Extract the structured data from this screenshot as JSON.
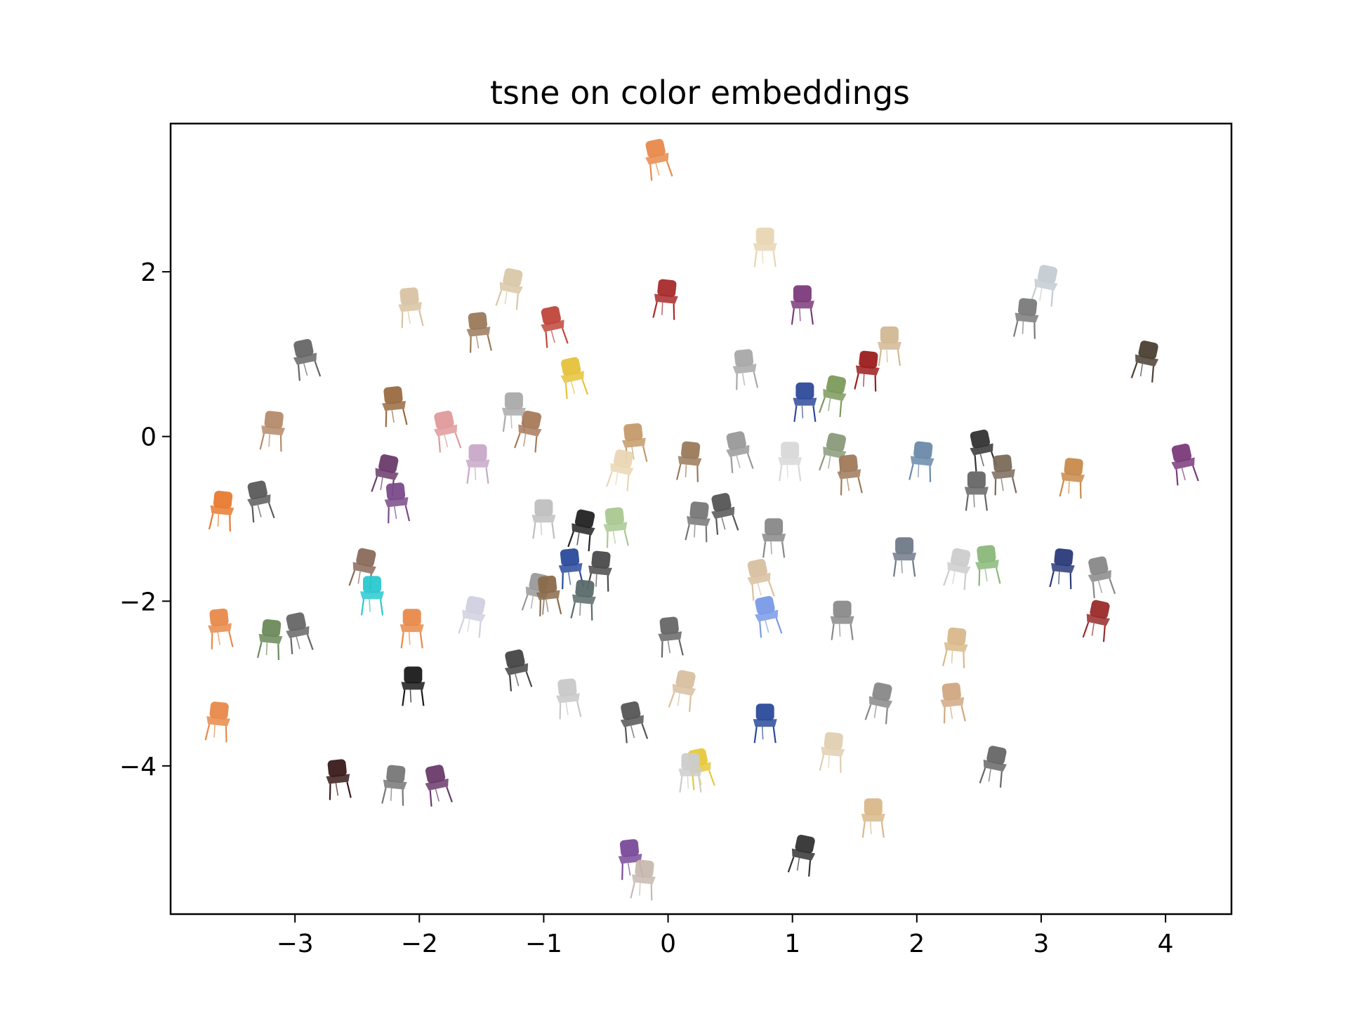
{
  "chart_data": {
    "type": "scatter",
    "title": "tsne on color embeddings",
    "xlabel": "",
    "ylabel": "",
    "xlim": [
      -4.0,
      4.53
    ],
    "ylim": [
      -5.8,
      3.8
    ],
    "x_ticks": [
      -3,
      -2,
      -1,
      0,
      1,
      2,
      3,
      4
    ],
    "y_ticks": [
      2,
      0,
      -2,
      -4
    ],
    "x_tick_labels": [
      "−3",
      "−2",
      "−1",
      "0",
      "1",
      "2",
      "3",
      "4"
    ],
    "y_tick_labels": [
      "2",
      "0",
      "−2",
      "−4"
    ],
    "grid": false,
    "legend": "none",
    "marker": "chair-thumbnail",
    "points": [
      {
        "x": -0.08,
        "y": 3.35,
        "color": "#e8894a"
      },
      {
        "x": 0.78,
        "y": 2.28,
        "color": "#e8d6b4"
      },
      {
        "x": -1.27,
        "y": 1.78,
        "color": "#d9c7a8"
      },
      {
        "x": -2.07,
        "y": 1.55,
        "color": "#d8c3a2"
      },
      {
        "x": -0.02,
        "y": 1.65,
        "color": "#a82a2a"
      },
      {
        "x": -0.92,
        "y": 1.32,
        "color": "#c0453a"
      },
      {
        "x": 1.08,
        "y": 1.58,
        "color": "#7b3a7b"
      },
      {
        "x": 3.03,
        "y": 1.82,
        "color": "#c4ccd2"
      },
      {
        "x": -1.52,
        "y": 1.25,
        "color": "#9a7a5a"
      },
      {
        "x": 2.88,
        "y": 1.42,
        "color": "#7a7a7a"
      },
      {
        "x": -2.91,
        "y": 0.92,
        "color": "#666666"
      },
      {
        "x": 1.78,
        "y": 1.08,
        "color": "#d2b894"
      },
      {
        "x": 3.84,
        "y": 0.9,
        "color": "#4a3f33"
      },
      {
        "x": 0.62,
        "y": 0.8,
        "color": "#a8a8a8"
      },
      {
        "x": 1.6,
        "y": 0.78,
        "color": "#9c1c1c"
      },
      {
        "x": -0.76,
        "y": 0.7,
        "color": "#e6c23a"
      },
      {
        "x": 1.1,
        "y": 0.4,
        "color": "#2f4a9a"
      },
      {
        "x": 1.33,
        "y": 0.48,
        "color": "#7c9a5c"
      },
      {
        "x": -2.2,
        "y": 0.35,
        "color": "#9a6a40"
      },
      {
        "x": -3.18,
        "y": 0.05,
        "color": "#b48a6a"
      },
      {
        "x": -1.78,
        "y": 0.05,
        "color": "#e09a9a"
      },
      {
        "x": -1.24,
        "y": 0.28,
        "color": "#aaaaaa"
      },
      {
        "x": -1.12,
        "y": 0.05,
        "color": "#a87a5a"
      },
      {
        "x": -0.27,
        "y": -0.1,
        "color": "#c49a6a"
      },
      {
        "x": 0.17,
        "y": -0.32,
        "color": "#9a7a5a"
      },
      {
        "x": 0.57,
        "y": -0.2,
        "color": "#999999"
      },
      {
        "x": 0.98,
        "y": -0.32,
        "color": "#d8d8d8"
      },
      {
        "x": 1.33,
        "y": -0.22,
        "color": "#8a9a7a"
      },
      {
        "x": 1.46,
        "y": -0.48,
        "color": "#a07a5a"
      },
      {
        "x": 2.04,
        "y": -0.32,
        "color": "#6a8aaa"
      },
      {
        "x": 2.53,
        "y": -0.18,
        "color": "#333333"
      },
      {
        "x": -1.53,
        "y": -0.35,
        "color": "#c8a8c8"
      },
      {
        "x": -0.38,
        "y": -0.42,
        "color": "#ead6b4"
      },
      {
        "x": 2.7,
        "y": -0.48,
        "color": "#7a6a5a"
      },
      {
        "x": 3.25,
        "y": -0.52,
        "color": "#c88a4a"
      },
      {
        "x": 4.15,
        "y": -0.35,
        "color": "#7a3a7a"
      },
      {
        "x": 2.48,
        "y": -0.68,
        "color": "#666666"
      },
      {
        "x": -2.27,
        "y": -0.48,
        "color": "#6a3a6a"
      },
      {
        "x": -2.18,
        "y": -0.82,
        "color": "#7a4a8a"
      },
      {
        "x": -3.59,
        "y": -0.92,
        "color": "#e87a30"
      },
      {
        "x": -3.28,
        "y": -0.8,
        "color": "#5a5a5a"
      },
      {
        "x": -1.0,
        "y": -1.02,
        "color": "#bfbfbf"
      },
      {
        "x": -0.69,
        "y": -1.15,
        "color": "#222222"
      },
      {
        "x": -0.42,
        "y": -1.12,
        "color": "#a8c890"
      },
      {
        "x": 0.24,
        "y": -1.05,
        "color": "#777777"
      },
      {
        "x": 0.45,
        "y": -0.95,
        "color": "#555555"
      },
      {
        "x": 0.85,
        "y": -1.25,
        "color": "#888888"
      },
      {
        "x": -2.45,
        "y": -1.62,
        "color": "#8a6a5a"
      },
      {
        "x": -0.78,
        "y": -1.62,
        "color": "#2a4a9a"
      },
      {
        "x": -0.55,
        "y": -1.65,
        "color": "#4a4a4a"
      },
      {
        "x": 0.74,
        "y": -1.75,
        "color": "#d8c0a0"
      },
      {
        "x": 1.9,
        "y": -1.48,
        "color": "#707a88"
      },
      {
        "x": 2.33,
        "y": -1.62,
        "color": "#cccccc"
      },
      {
        "x": 2.57,
        "y": -1.58,
        "color": "#8ab87a"
      },
      {
        "x": 3.17,
        "y": -1.62,
        "color": "#2a3a7a"
      },
      {
        "x": 3.48,
        "y": -1.72,
        "color": "#888888"
      },
      {
        "x": -2.38,
        "y": -1.95,
        "color": "#2ac8d0"
      },
      {
        "x": -1.06,
        "y": -1.92,
        "color": "#999999"
      },
      {
        "x": -0.96,
        "y": -1.95,
        "color": "#8a6a4a"
      },
      {
        "x": -0.68,
        "y": -2.0,
        "color": "#5a6a6a"
      },
      {
        "x": 0.8,
        "y": -2.2,
        "color": "#7a9ae8"
      },
      {
        "x": 1.4,
        "y": -2.25,
        "color": "#8a8a8a"
      },
      {
        "x": 3.45,
        "y": -2.25,
        "color": "#9a2a2a"
      },
      {
        "x": -3.6,
        "y": -2.35,
        "color": "#e8894a"
      },
      {
        "x": -3.2,
        "y": -2.48,
        "color": "#6a8a5a"
      },
      {
        "x": -2.97,
        "y": -2.4,
        "color": "#666666"
      },
      {
        "x": -2.06,
        "y": -2.35,
        "color": "#e8894a"
      },
      {
        "x": -1.57,
        "y": -2.2,
        "color": "#d0d0e0"
      },
      {
        "x": 0.02,
        "y": -2.45,
        "color": "#666666"
      },
      {
        "x": 2.31,
        "y": -2.58,
        "color": "#d8b88a"
      },
      {
        "x": -1.21,
        "y": -2.85,
        "color": "#444444"
      },
      {
        "x": -2.05,
        "y": -3.05,
        "color": "#1a1a1a"
      },
      {
        "x": 0.12,
        "y": -3.1,
        "color": "#d8c0a0"
      },
      {
        "x": -0.8,
        "y": -3.2,
        "color": "#c8c8c8"
      },
      {
        "x": -3.62,
        "y": -3.48,
        "color": "#e8894a"
      },
      {
        "x": -0.28,
        "y": -3.48,
        "color": "#555555"
      },
      {
        "x": 0.78,
        "y": -3.5,
        "color": "#2a4a9a"
      },
      {
        "x": 1.7,
        "y": -3.25,
        "color": "#888888"
      },
      {
        "x": 2.29,
        "y": -3.25,
        "color": "#d0a882"
      },
      {
        "x": 1.32,
        "y": -3.85,
        "color": "#e0cfb0"
      },
      {
        "x": 0.26,
        "y": -4.05,
        "color": "#e6c83a"
      },
      {
        "x": 0.18,
        "y": -4.1,
        "color": "#cccccc"
      },
      {
        "x": 2.62,
        "y": -4.02,
        "color": "#666666"
      },
      {
        "x": -2.65,
        "y": -4.18,
        "color": "#3a1a1a"
      },
      {
        "x": -2.2,
        "y": -4.25,
        "color": "#777777"
      },
      {
        "x": -1.85,
        "y": -4.25,
        "color": "#6a3a6a"
      },
      {
        "x": 1.65,
        "y": -4.65,
        "color": "#d8b88a"
      },
      {
        "x": 1.08,
        "y": -5.1,
        "color": "#333333"
      },
      {
        "x": -0.3,
        "y": -5.15,
        "color": "#7a4a9a"
      },
      {
        "x": -0.2,
        "y": -5.4,
        "color": "#c8b8b0"
      }
    ]
  }
}
